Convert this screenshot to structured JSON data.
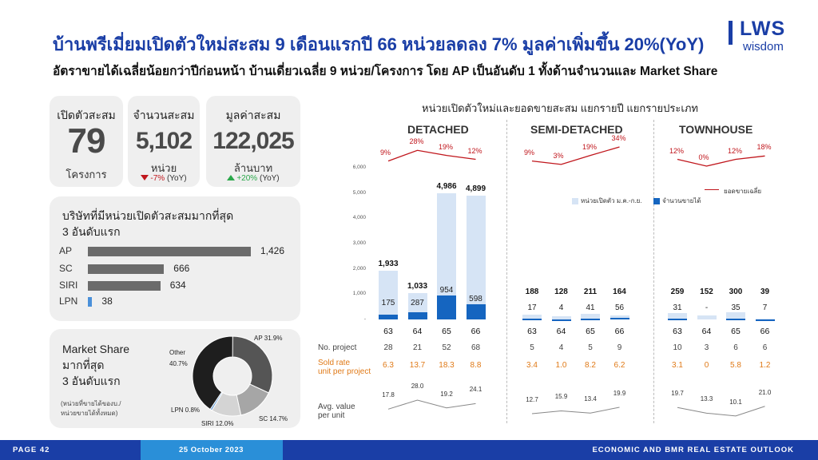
{
  "header": {
    "title": "บ้านพรีเมี่ยมเปิดตัวใหม่สะสม 9 เดือนแรกปี 66 หน่วยลดลง 7% มูลค่าเพิ่มขึ้น 20%(YoY)",
    "subtitle": "อัตราขายได้เฉลี่ยน้อยกว่าปีก่อนหน้า บ้านเดี่ยวเฉลี่ย 9 หน่วย/โครงการ โดย AP เป็นอันดับ 1 ทั้งด้านจำนวนและ Market Share"
  },
  "logo": {
    "brand": "LWS",
    "sub": "wisdom",
    "color": "#1a3ea6"
  },
  "kpis": [
    {
      "label": "เปิดตัวสะสม",
      "value": "79",
      "unit": "โครงการ",
      "change_pct": "",
      "change_suffix": ""
    },
    {
      "label": "จำนวนสะสม",
      "value": "5,102",
      "unit": "หน่วย",
      "change_pct": "-7%",
      "change_suffix": "(YoY)",
      "direction": "down"
    },
    {
      "label": "มูลค่าสะสม",
      "value": "122,025",
      "unit": "ล้านบาท",
      "change_pct": "+20%",
      "change_suffix": "(YoY)",
      "direction": "up"
    }
  ],
  "top_developers": {
    "title_line1": "บริษัทที่มีหน่วยเปิดตัวสะสมมากที่สุด",
    "title_line2": "3 อันดับแรก",
    "items": [
      {
        "name": "AP",
        "value": 1426,
        "label": "1,426",
        "color": "#6b6b6b"
      },
      {
        "name": "SC",
        "value": 666,
        "label": "666",
        "color": "#6b6b6b"
      },
      {
        "name": "SIRI",
        "value": 634,
        "label": "634",
        "color": "#6b6b6b"
      },
      {
        "name": "LPN",
        "value": 38,
        "label": "38",
        "color": "#4a90d9"
      }
    ]
  },
  "market_share": {
    "title_line1": "Market Share",
    "title_line2": "มากที่สุด",
    "title_line3": "3 อันดับแรก",
    "note_line1": "(หน่วยที่ขายได้ของบ./",
    "note_line2": "หน่วยขายได้ทั้งหมด)",
    "slices": [
      {
        "name": "AP",
        "label": "AP 31.9%",
        "value": 31.9,
        "color": "#555555"
      },
      {
        "name": "SC",
        "label": "SC 14.7%",
        "value": 14.7,
        "color": "#a6a6a6"
      },
      {
        "name": "SIRI",
        "label": "SIRI 12.0%",
        "value": 12.0,
        "color": "#d4d4d4"
      },
      {
        "name": "LPN",
        "label": "LPN 0.8%",
        "value": 0.8,
        "color": "#6aa0d8"
      },
      {
        "name": "Other",
        "label_line1": "Other",
        "label_line2": "40.7%",
        "value": 40.7,
        "color": "#1e1e1e"
      }
    ]
  },
  "chart_data": {
    "type": "bar",
    "title": "หน่วยเปิดตัวใหม่และยอดขายสะสม แยกรายปี แยกรายประเภท",
    "ylim": [
      0,
      6000
    ],
    "yticks": [
      "6,000",
      "5,000",
      "4,000",
      "3,000",
      "2,000",
      "1,000",
      "-"
    ],
    "legend": {
      "launched": "หน่วยเปิดตัว ม.ค.-ก.ย.",
      "sold": "จำนวนขายได้",
      "avg_sold": "ยอดขายเฉลี่ย"
    },
    "colors": {
      "launched": "#d6e4f5",
      "sold": "#1565c0",
      "pct_line": "#c0161c"
    },
    "row_labels": {
      "no_project": "No. project",
      "sold_rate_1": "Sold rate",
      "sold_rate_2": "unit per project",
      "avg_value_1": "Avg. value",
      "avg_value_2": "per unit"
    },
    "segments": [
      {
        "name": "DETACHED",
        "years": [
          "63",
          "64",
          "65",
          "66"
        ],
        "launched": [
          1933,
          1033,
          4986,
          4899
        ],
        "launched_labels": [
          "1,933",
          "1,033",
          "4,986",
          "4,899"
        ],
        "sold": [
          175,
          287,
          954,
          598
        ],
        "sold_labels": [
          "175",
          "287",
          "954",
          "598"
        ],
        "sold_pct": [
          "9%",
          "28%",
          "19%",
          "12%"
        ],
        "sold_pct_values": [
          9,
          28,
          19,
          12
        ],
        "projects": [
          "28",
          "21",
          "52",
          "68"
        ],
        "sold_rate": [
          "6.3",
          "13.7",
          "18.3",
          "8.8"
        ],
        "avg_value": [
          "17.8",
          "28.0",
          "19.2",
          "24.1"
        ],
        "avg_value_num": [
          17.8,
          28.0,
          19.2,
          24.1
        ]
      },
      {
        "name": "SEMI-DETACHED",
        "years": [
          "63",
          "64",
          "65",
          "66"
        ],
        "launched": [
          188,
          128,
          211,
          164
        ],
        "launched_labels": [
          "188",
          "128",
          "211",
          "164"
        ],
        "sold": [
          17,
          4,
          41,
          56
        ],
        "sold_labels": [
          "17",
          "4",
          "41",
          "56"
        ],
        "sold_pct": [
          "9%",
          "3%",
          "19%",
          "34%"
        ],
        "sold_pct_values": [
          9,
          3,
          19,
          34
        ],
        "projects": [
          "5",
          "4",
          "5",
          "9"
        ],
        "sold_rate": [
          "3.4",
          "1.0",
          "8.2",
          "6.2"
        ],
        "avg_value": [
          "12.7",
          "15.9",
          "13.4",
          "19.9"
        ],
        "avg_value_num": [
          12.7,
          15.9,
          13.4,
          19.9
        ]
      },
      {
        "name": "TOWNHOUSE",
        "years": [
          "63",
          "64",
          "65",
          "66"
        ],
        "launched": [
          259,
          152,
          300,
          39
        ],
        "launched_labels": [
          "259",
          "152",
          "300",
          "39"
        ],
        "sold": [
          31,
          0,
          35,
          7
        ],
        "sold_labels": [
          "31",
          "-",
          "35",
          "7"
        ],
        "sold_pct": [
          "12%",
          "0%",
          "12%",
          "18%"
        ],
        "sold_pct_values": [
          12,
          0,
          12,
          18
        ],
        "projects": [
          "10",
          "3",
          "6",
          "6"
        ],
        "sold_rate": [
          "3.1",
          "0",
          "5.8",
          "1.2"
        ],
        "avg_value": [
          "19.7",
          "13.3",
          "10.1",
          "21.0"
        ],
        "avg_value_num": [
          19.7,
          13.3,
          10.1,
          21.0
        ]
      }
    ]
  },
  "footer": {
    "page": "PAGE 42",
    "date": "25 October 2023",
    "outlook": "ECONOMIC AND BMR REAL ESTATE OUTLOOK"
  }
}
